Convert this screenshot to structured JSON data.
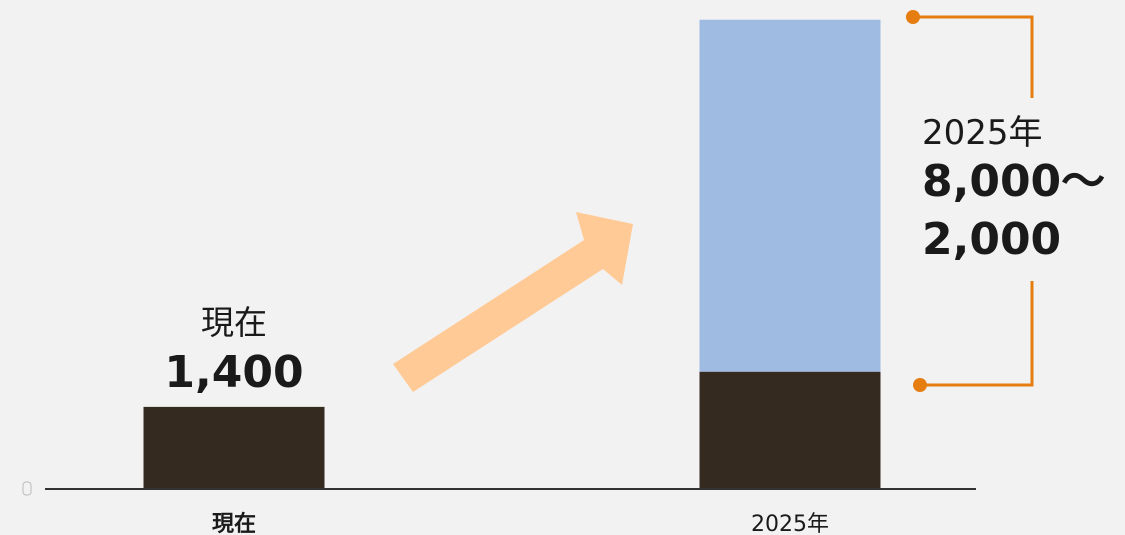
{
  "chart_data": {
    "type": "bar",
    "categories": [
      "現在",
      "2025年"
    ],
    "series": [
      {
        "values": [
          1400,
          2000
        ]
      },
      {
        "values": [
          0,
          6000
        ]
      }
    ],
    "annotations": {
      "current": {
        "label": "現在",
        "value": "1,400"
      },
      "future": {
        "label": "2025年",
        "value_line1": "8,000～",
        "value_line2": "2,000"
      }
    },
    "ylim": [
      0,
      8200
    ],
    "grid": false,
    "legend": "none"
  },
  "colors": {
    "base": "#342a20",
    "growth": "#a0bbe2",
    "arrow": "#ffca96",
    "bracket": "#e57d10",
    "axis": "#333333",
    "background": "#f2f2f2"
  }
}
